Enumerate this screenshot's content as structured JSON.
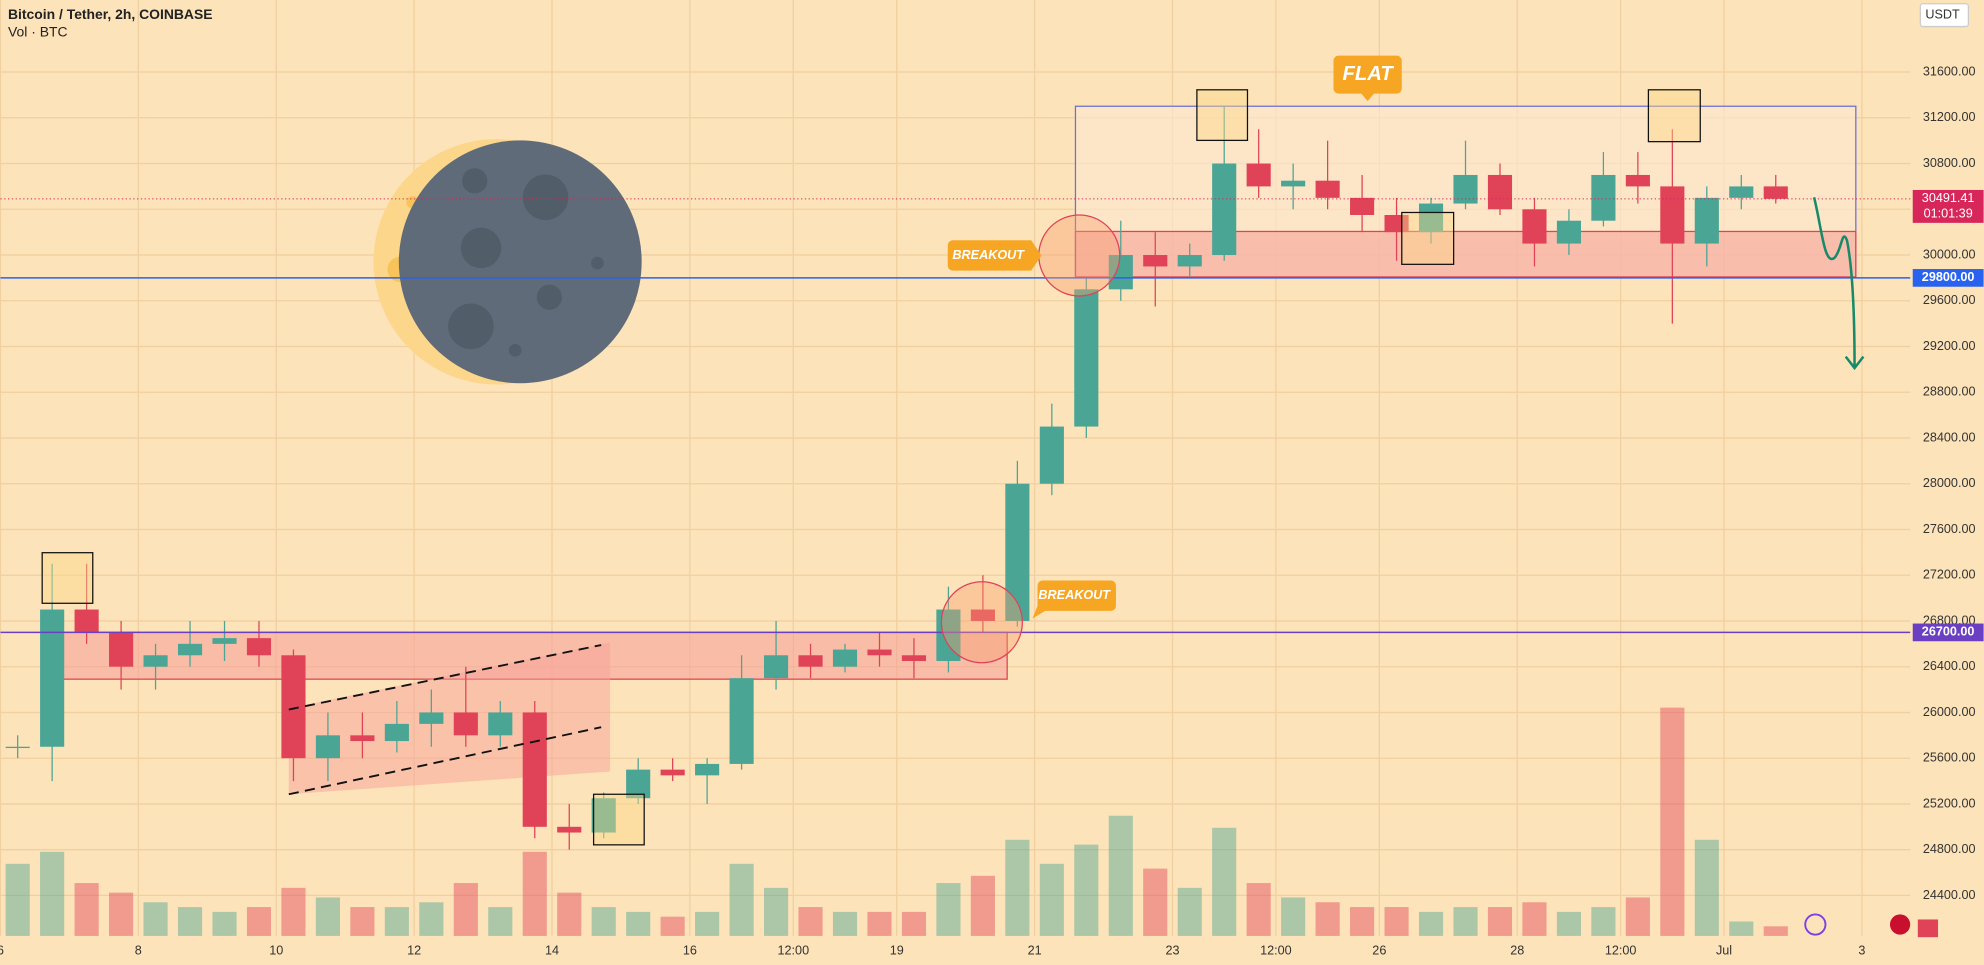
{
  "header": {
    "title": "Bitcoin / Tether, 2h, COINBASE",
    "subtitle": "Vol · BTC",
    "currency": "USDT"
  },
  "annotations": {
    "flat": "FLAT",
    "breakout_top": "BREAKOUT",
    "breakout_bottom": "BREAKOUT"
  },
  "chart_data": {
    "type": "candlestick",
    "x": [
      0.25,
      0.75,
      1.25,
      1.75,
      2.25,
      2.75,
      3.25,
      3.75,
      4.25,
      4.75,
      5.25,
      5.75,
      6.25,
      6.75,
      7.25,
      7.75,
      8.25,
      8.75,
      9.25,
      9.75,
      10.25,
      10.75,
      11.25,
      11.75,
      12.25,
      12.75,
      13.25,
      13.75,
      14.25,
      14.75,
      15.25,
      15.75,
      16.25,
      16.75,
      17.25,
      17.75,
      18.25,
      18.75,
      19.25,
      19.75,
      20.25,
      20.75,
      21.25,
      21.75,
      22.25,
      22.75,
      23.25,
      23.75,
      24.25,
      24.75,
      25.25,
      25.75
    ],
    "open": [
      25700,
      25700,
      26900,
      26700,
      26400,
      26500,
      26600,
      26650,
      26500,
      25600,
      25800,
      25750,
      25900,
      26000,
      25800,
      26000,
      25000,
      24950,
      25250,
      25500,
      25450,
      25550,
      26300,
      26500,
      26400,
      26550,
      26500,
      26450,
      26900,
      26800,
      28000,
      28500,
      29700,
      30000,
      29900,
      30000,
      30800,
      30600,
      30650,
      30500,
      30350,
      30200,
      30450,
      30700,
      30400,
      30100,
      30300,
      30700,
      30600,
      30100,
      30500,
      30600
    ],
    "high": [
      25800,
      27300,
      27300,
      26800,
      26600,
      26800,
      26800,
      26800,
      26550,
      26000,
      26000,
      26100,
      26200,
      26400,
      26100,
      26100,
      25200,
      25300,
      25600,
      25600,
      25600,
      26500,
      26800,
      26600,
      26600,
      26700,
      26650,
      27100,
      27200,
      28200,
      28700,
      29800,
      30300,
      30200,
      30100,
      31300,
      31100,
      30800,
      31000,
      30700,
      30500,
      30500,
      31000,
      30800,
      30500,
      30400,
      30900,
      30900,
      31100,
      30600,
      30700,
      30700
    ],
    "low": [
      25600,
      25400,
      26600,
      26200,
      26200,
      26400,
      26450,
      26400,
      25400,
      25400,
      25600,
      25650,
      25700,
      25700,
      25700,
      24900,
      24800,
      24900,
      25200,
      25400,
      25200,
      25500,
      26200,
      26300,
      26350,
      26400,
      26300,
      26350,
      26700,
      26750,
      27900,
      28400,
      29600,
      29550,
      29800,
      29950,
      30500,
      30400,
      30400,
      30200,
      29950,
      30100,
      30400,
      30350,
      29900,
      30000,
      30250,
      30450,
      29400,
      29900,
      30400,
      30450
    ],
    "close": [
      25700,
      26900,
      26700,
      26400,
      26500,
      26600,
      26650,
      26500,
      25600,
      25800,
      25750,
      25900,
      26000,
      25800,
      26000,
      25000,
      24950,
      25250,
      25500,
      25450,
      25550,
      26300,
      26500,
      26400,
      26550,
      26500,
      26450,
      26900,
      26800,
      28000,
      28500,
      29700,
      30000,
      29900,
      30000,
      30800,
      30600,
      30650,
      30500,
      30350,
      30200,
      30450,
      30700,
      30400,
      30100,
      30300,
      30700,
      30600,
      30100,
      30500,
      30600,
      30491.41
    ],
    "volume": [
      30,
      35,
      22,
      18,
      14,
      12,
      10,
      12,
      20,
      16,
      12,
      12,
      14,
      22,
      12,
      35,
      18,
      12,
      10,
      8,
      10,
      30,
      20,
      12,
      10,
      10,
      10,
      22,
      25,
      40,
      30,
      38,
      50,
      28,
      20,
      45,
      22,
      16,
      14,
      12,
      12,
      10,
      12,
      12,
      14,
      10,
      12,
      16,
      95,
      40,
      6,
      4
    ],
    "vlim": [
      0,
      100
    ],
    "xlim": [
      0,
      27.7
    ],
    "xticks": [
      {
        "value": 0,
        "label": "6"
      },
      {
        "value": 2,
        "label": "8"
      },
      {
        "value": 4,
        "label": "10"
      },
      {
        "value": 6,
        "label": "12"
      },
      {
        "value": 8,
        "label": "14"
      },
      {
        "value": 10,
        "label": "16"
      },
      {
        "value": 11.5,
        "label": "12:00"
      },
      {
        "value": 13,
        "label": "19"
      },
      {
        "value": 15,
        "label": "21"
      },
      {
        "value": 17,
        "label": "23"
      },
      {
        "value": 18.5,
        "label": "12:00"
      },
      {
        "value": 20,
        "label": "26"
      },
      {
        "value": 22,
        "label": "28"
      },
      {
        "value": 23.5,
        "label": "12:00"
      },
      {
        "value": 25,
        "label": "Jul"
      },
      {
        "value": 27,
        "label": "3"
      }
    ],
    "ylim": [
      24046,
      32230
    ],
    "yticks": [
      {
        "value": 24400,
        "label": "24400.00"
      },
      {
        "value": 24800,
        "label": "24800.00"
      },
      {
        "value": 25200,
        "label": "25200.00"
      },
      {
        "value": 25600,
        "label": "25600.00"
      },
      {
        "value": 26000,
        "label": "26000.00"
      },
      {
        "value": 26400,
        "label": "26400.00"
      },
      {
        "value": 26800,
        "label": "26800.00"
      },
      {
        "value": 27200,
        "label": "27200.00"
      },
      {
        "value": 27600,
        "label": "27600.00"
      },
      {
        "value": 28000,
        "label": "28000.00"
      },
      {
        "value": 28400,
        "label": "28400.00"
      },
      {
        "value": 28800,
        "label": "28800.00"
      },
      {
        "value": 29200,
        "label": "29200.00"
      },
      {
        "value": 29600,
        "label": "29600.00"
      },
      {
        "value": 30000,
        "label": "30000.00"
      },
      {
        "value": 30400,
        "label": "30400.00"
      },
      {
        "value": 30800,
        "label": "30800.00"
      },
      {
        "value": 31200,
        "label": "31200.00"
      },
      {
        "value": 31600,
        "label": "31600.00"
      }
    ],
    "up_color": "#4aa595",
    "down_color": "#e04358",
    "last_price": {
      "value": 30491.41,
      "label": "30491.41",
      "countdown": "01:01:39",
      "color": "#d6265a"
    },
    "levels": [
      {
        "value": 29800,
        "label": "29800.00",
        "color": "#2a62f0"
      },
      {
        "value": 26700,
        "label": "26700.00",
        "color": "#6a3fc2"
      }
    ],
    "grid": true
  }
}
